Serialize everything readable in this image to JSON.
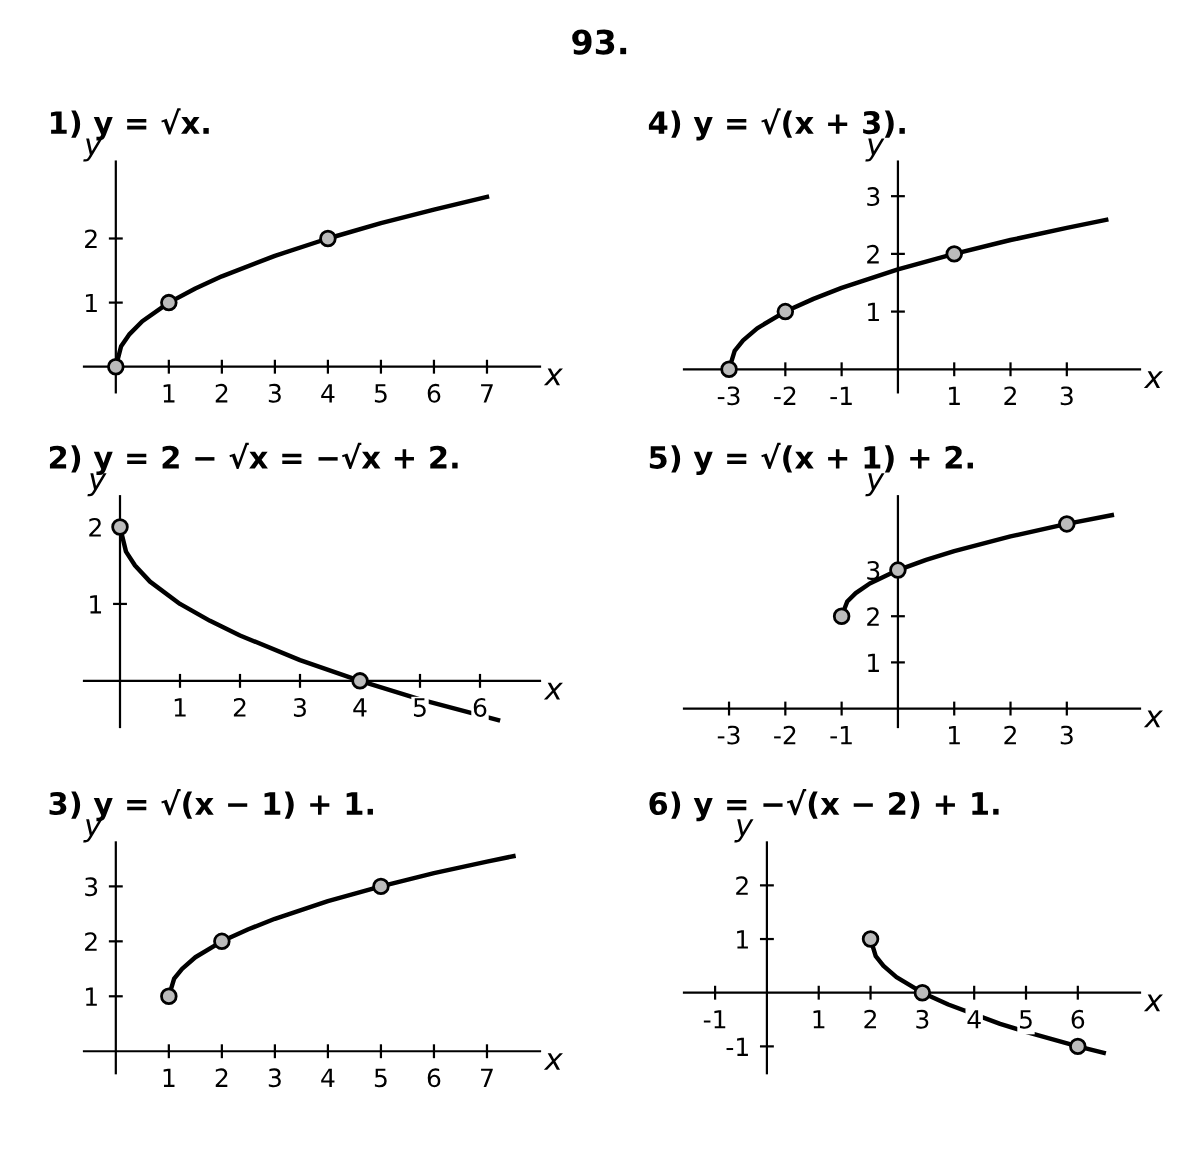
{
  "chart_data": [
    {
      "type": "line",
      "title": "1) y = √x.",
      "annotations": [
        "93."
      ],
      "xlabel": "x",
      "ylabel": "y",
      "xlim": [
        -0.6,
        8
      ],
      "ylim": [
        -0.4,
        3.2
      ],
      "xticks": [
        1,
        2,
        3,
        4,
        5,
        6,
        7
      ],
      "yticks": [
        1,
        2
      ],
      "grid": false,
      "legend": false,
      "series": [
        {
          "color": "#000000",
          "marker": "none",
          "x": [
            0,
            0.1,
            0.25,
            0.5,
            1,
            1.5,
            2,
            3,
            4,
            5,
            6,
            7
          ],
          "values": [
            0,
            0.32,
            0.5,
            0.71,
            1,
            1.22,
            1.41,
            1.73,
            2,
            2.24,
            2.45,
            2.65
          ]
        },
        {
          "type": "scatter",
          "color": "#000000",
          "marker": "circle",
          "x": [
            0,
            1,
            4
          ],
          "values": [
            0,
            1,
            2
          ]
        }
      ]
    },
    {
      "type": "line",
      "title": "4) y = √(x + 3).",
      "xlabel": "x",
      "ylabel": "y",
      "xlim": [
        -3.8,
        4.3
      ],
      "ylim": [
        -0.4,
        3.6
      ],
      "xticks": [
        -3,
        -2,
        -1,
        1,
        2,
        3
      ],
      "yticks": [
        1,
        2,
        3
      ],
      "grid": false,
      "legend": false,
      "series": [
        {
          "color": "#000000",
          "marker": "none",
          "x": [
            -3,
            -2.9,
            -2.75,
            -2.5,
            -2,
            -1.5,
            -1,
            0,
            1,
            2,
            3,
            3.7
          ],
          "values": [
            0,
            0.32,
            0.5,
            0.71,
            1,
            1.22,
            1.41,
            1.73,
            2,
            2.24,
            2.45,
            2.59
          ]
        },
        {
          "type": "scatter",
          "color": "#000000",
          "marker": "circle",
          "x": [
            -3,
            -2,
            1
          ],
          "values": [
            0,
            1,
            2
          ]
        }
      ]
    },
    {
      "type": "line",
      "title": "2) y = 2 − √x = −√x + 2.",
      "xlabel": "x",
      "ylabel": "y",
      "xlim": [
        -0.6,
        7
      ],
      "ylim": [
        -0.6,
        2.4
      ],
      "xticks": [
        1,
        2,
        3,
        4,
        5,
        6
      ],
      "yticks": [
        1,
        2
      ],
      "grid": false,
      "legend": false,
      "series": [
        {
          "color": "#000000",
          "marker": "none",
          "x": [
            0,
            0.1,
            0.25,
            0.5,
            1,
            1.5,
            2,
            3,
            4,
            5,
            6.3
          ],
          "values": [
            2,
            1.68,
            1.5,
            1.29,
            1,
            0.78,
            0.59,
            0.27,
            0,
            -0.24,
            -0.51
          ]
        },
        {
          "type": "scatter",
          "color": "#000000",
          "marker": "circle",
          "x": [
            0,
            4
          ],
          "values": [
            2,
            0
          ]
        }
      ]
    },
    {
      "type": "line",
      "title": "5) y = √(x + 1) + 2.",
      "xlabel": "x",
      "ylabel": "y",
      "xlim": [
        -3.8,
        4.3
      ],
      "ylim": [
        -0.4,
        4.6
      ],
      "xticks": [
        -3,
        -2,
        -1,
        1,
        2,
        3
      ],
      "yticks": [
        1,
        2,
        3
      ],
      "grid": false,
      "legend": false,
      "series": [
        {
          "color": "#000000",
          "marker": "none",
          "x": [
            -1,
            -0.9,
            -0.75,
            -0.5,
            0,
            0.5,
            1,
            2,
            3,
            3.8
          ],
          "values": [
            2,
            2.32,
            2.5,
            2.71,
            3,
            3.22,
            3.41,
            3.73,
            4,
            4.19
          ]
        },
        {
          "type": "scatter",
          "color": "#000000",
          "marker": "circle",
          "x": [
            -1,
            0,
            3
          ],
          "values": [
            2,
            3,
            4
          ]
        }
      ]
    },
    {
      "type": "line",
      "title": "3) y = √(x − 1) + 1.",
      "xlabel": "x",
      "ylabel": "y",
      "xlim": [
        -0.6,
        8
      ],
      "ylim": [
        -0.4,
        3.8
      ],
      "xticks": [
        1,
        2,
        3,
        4,
        5,
        6,
        7
      ],
      "yticks": [
        1,
        2,
        3
      ],
      "grid": false,
      "legend": false,
      "series": [
        {
          "color": "#000000",
          "marker": "none",
          "x": [
            1,
            1.1,
            1.25,
            1.5,
            2,
            2.5,
            3,
            4,
            5,
            6,
            7,
            7.5
          ],
          "values": [
            1,
            1.32,
            1.5,
            1.71,
            2,
            2.22,
            2.41,
            2.73,
            3,
            3.24,
            3.45,
            3.55
          ]
        },
        {
          "type": "scatter",
          "color": "#000000",
          "marker": "circle",
          "x": [
            1,
            2,
            5
          ],
          "values": [
            1,
            2,
            3
          ]
        }
      ]
    },
    {
      "type": "line",
      "title": "6) y = −√(x − 2) + 1.",
      "xlabel": "x",
      "ylabel": "y",
      "xlim": [
        -1.6,
        7.2
      ],
      "ylim": [
        -1.5,
        2.8
      ],
      "xticks": [
        -1,
        1,
        2,
        3,
        4,
        5,
        6
      ],
      "yticks": [
        -1,
        1,
        2
      ],
      "grid": false,
      "legend": false,
      "series": [
        {
          "color": "#000000",
          "marker": "none",
          "x": [
            2,
            2.1,
            2.25,
            2.5,
            3,
            3.5,
            4.5,
            5,
            6,
            6.5
          ],
          "values": [
            1,
            0.68,
            0.5,
            0.29,
            0,
            -0.22,
            -0.58,
            -0.73,
            -1,
            -1.12
          ]
        },
        {
          "type": "scatter",
          "color": "#000000",
          "marker": "circle",
          "x": [
            2,
            3,
            6
          ],
          "values": [
            1,
            0,
            -1
          ]
        }
      ]
    }
  ]
}
